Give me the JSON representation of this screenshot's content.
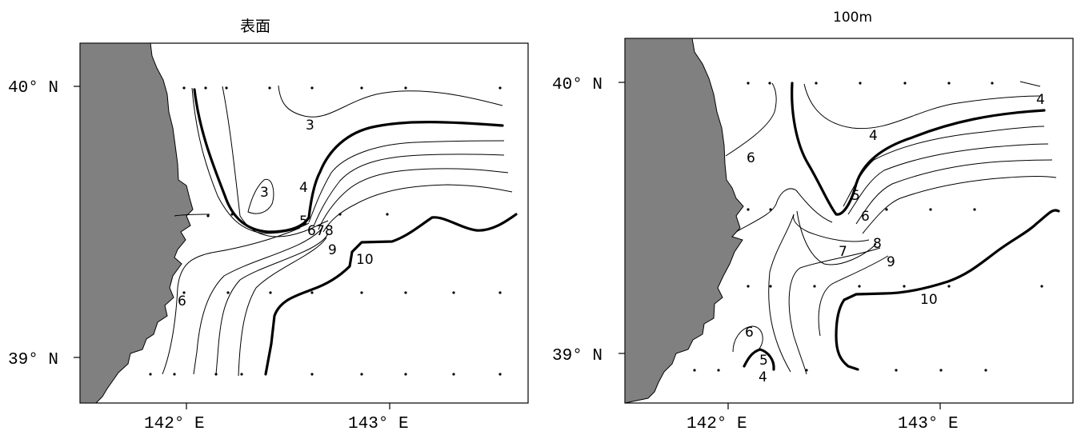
{
  "panels": [
    {
      "title": "表面",
      "lat_labels": [
        "40° N",
        "39° N"
      ],
      "lon_labels": [
        "142° E",
        "143° E"
      ],
      "contour_labels": [
        "3",
        "3",
        "4",
        "5",
        "6",
        "7",
        "8",
        "9",
        "10",
        "6"
      ]
    },
    {
      "title": "100m",
      "lat_labels": [
        "40° N",
        "39° N"
      ],
      "lon_labels": [
        "142° E",
        "143° E"
      ],
      "contour_labels": [
        "4",
        "4",
        "6",
        "5",
        "6",
        "7",
        "8",
        "9",
        "10",
        "6",
        "5",
        "4"
      ]
    }
  ],
  "colors": {
    "land": "#808080",
    "contour": "#000000",
    "background": "#ffffff"
  }
}
